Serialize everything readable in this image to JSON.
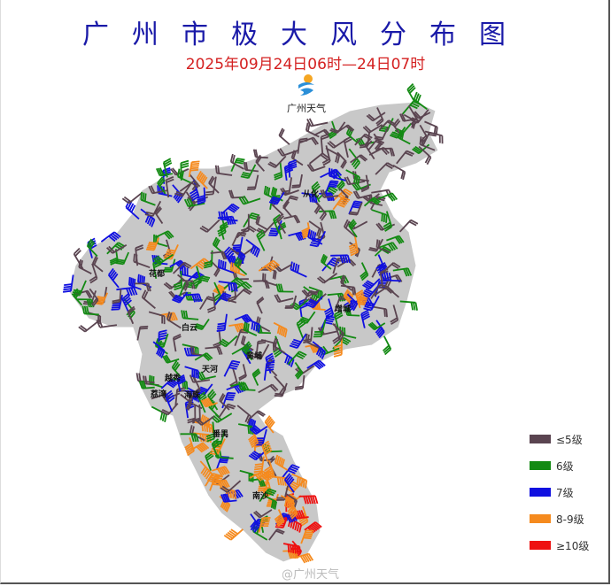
{
  "title": "广州市极大风分布图",
  "subtitle": "2025年09月24日06时—24日07时",
  "logo": {
    "text": "广州天气",
    "icon": "weather-logo-icon"
  },
  "watermark": "@广州天气",
  "map_color": "#c8c8c8",
  "districts": [
    "从化",
    "花都",
    "白云",
    "增城",
    "黄埔",
    "天河",
    "越秀",
    "荔湾",
    "海珠",
    "番禺",
    "南沙"
  ],
  "legend": [
    {
      "label": "≤5级",
      "color": "#5a4450"
    },
    {
      "label": "6级",
      "color": "#138a13"
    },
    {
      "label": "7级",
      "color": "#1010e0"
    },
    {
      "label": "8-9级",
      "color": "#f58a1e"
    },
    {
      "label": "≥10级",
      "color": "#ee1111"
    }
  ]
}
